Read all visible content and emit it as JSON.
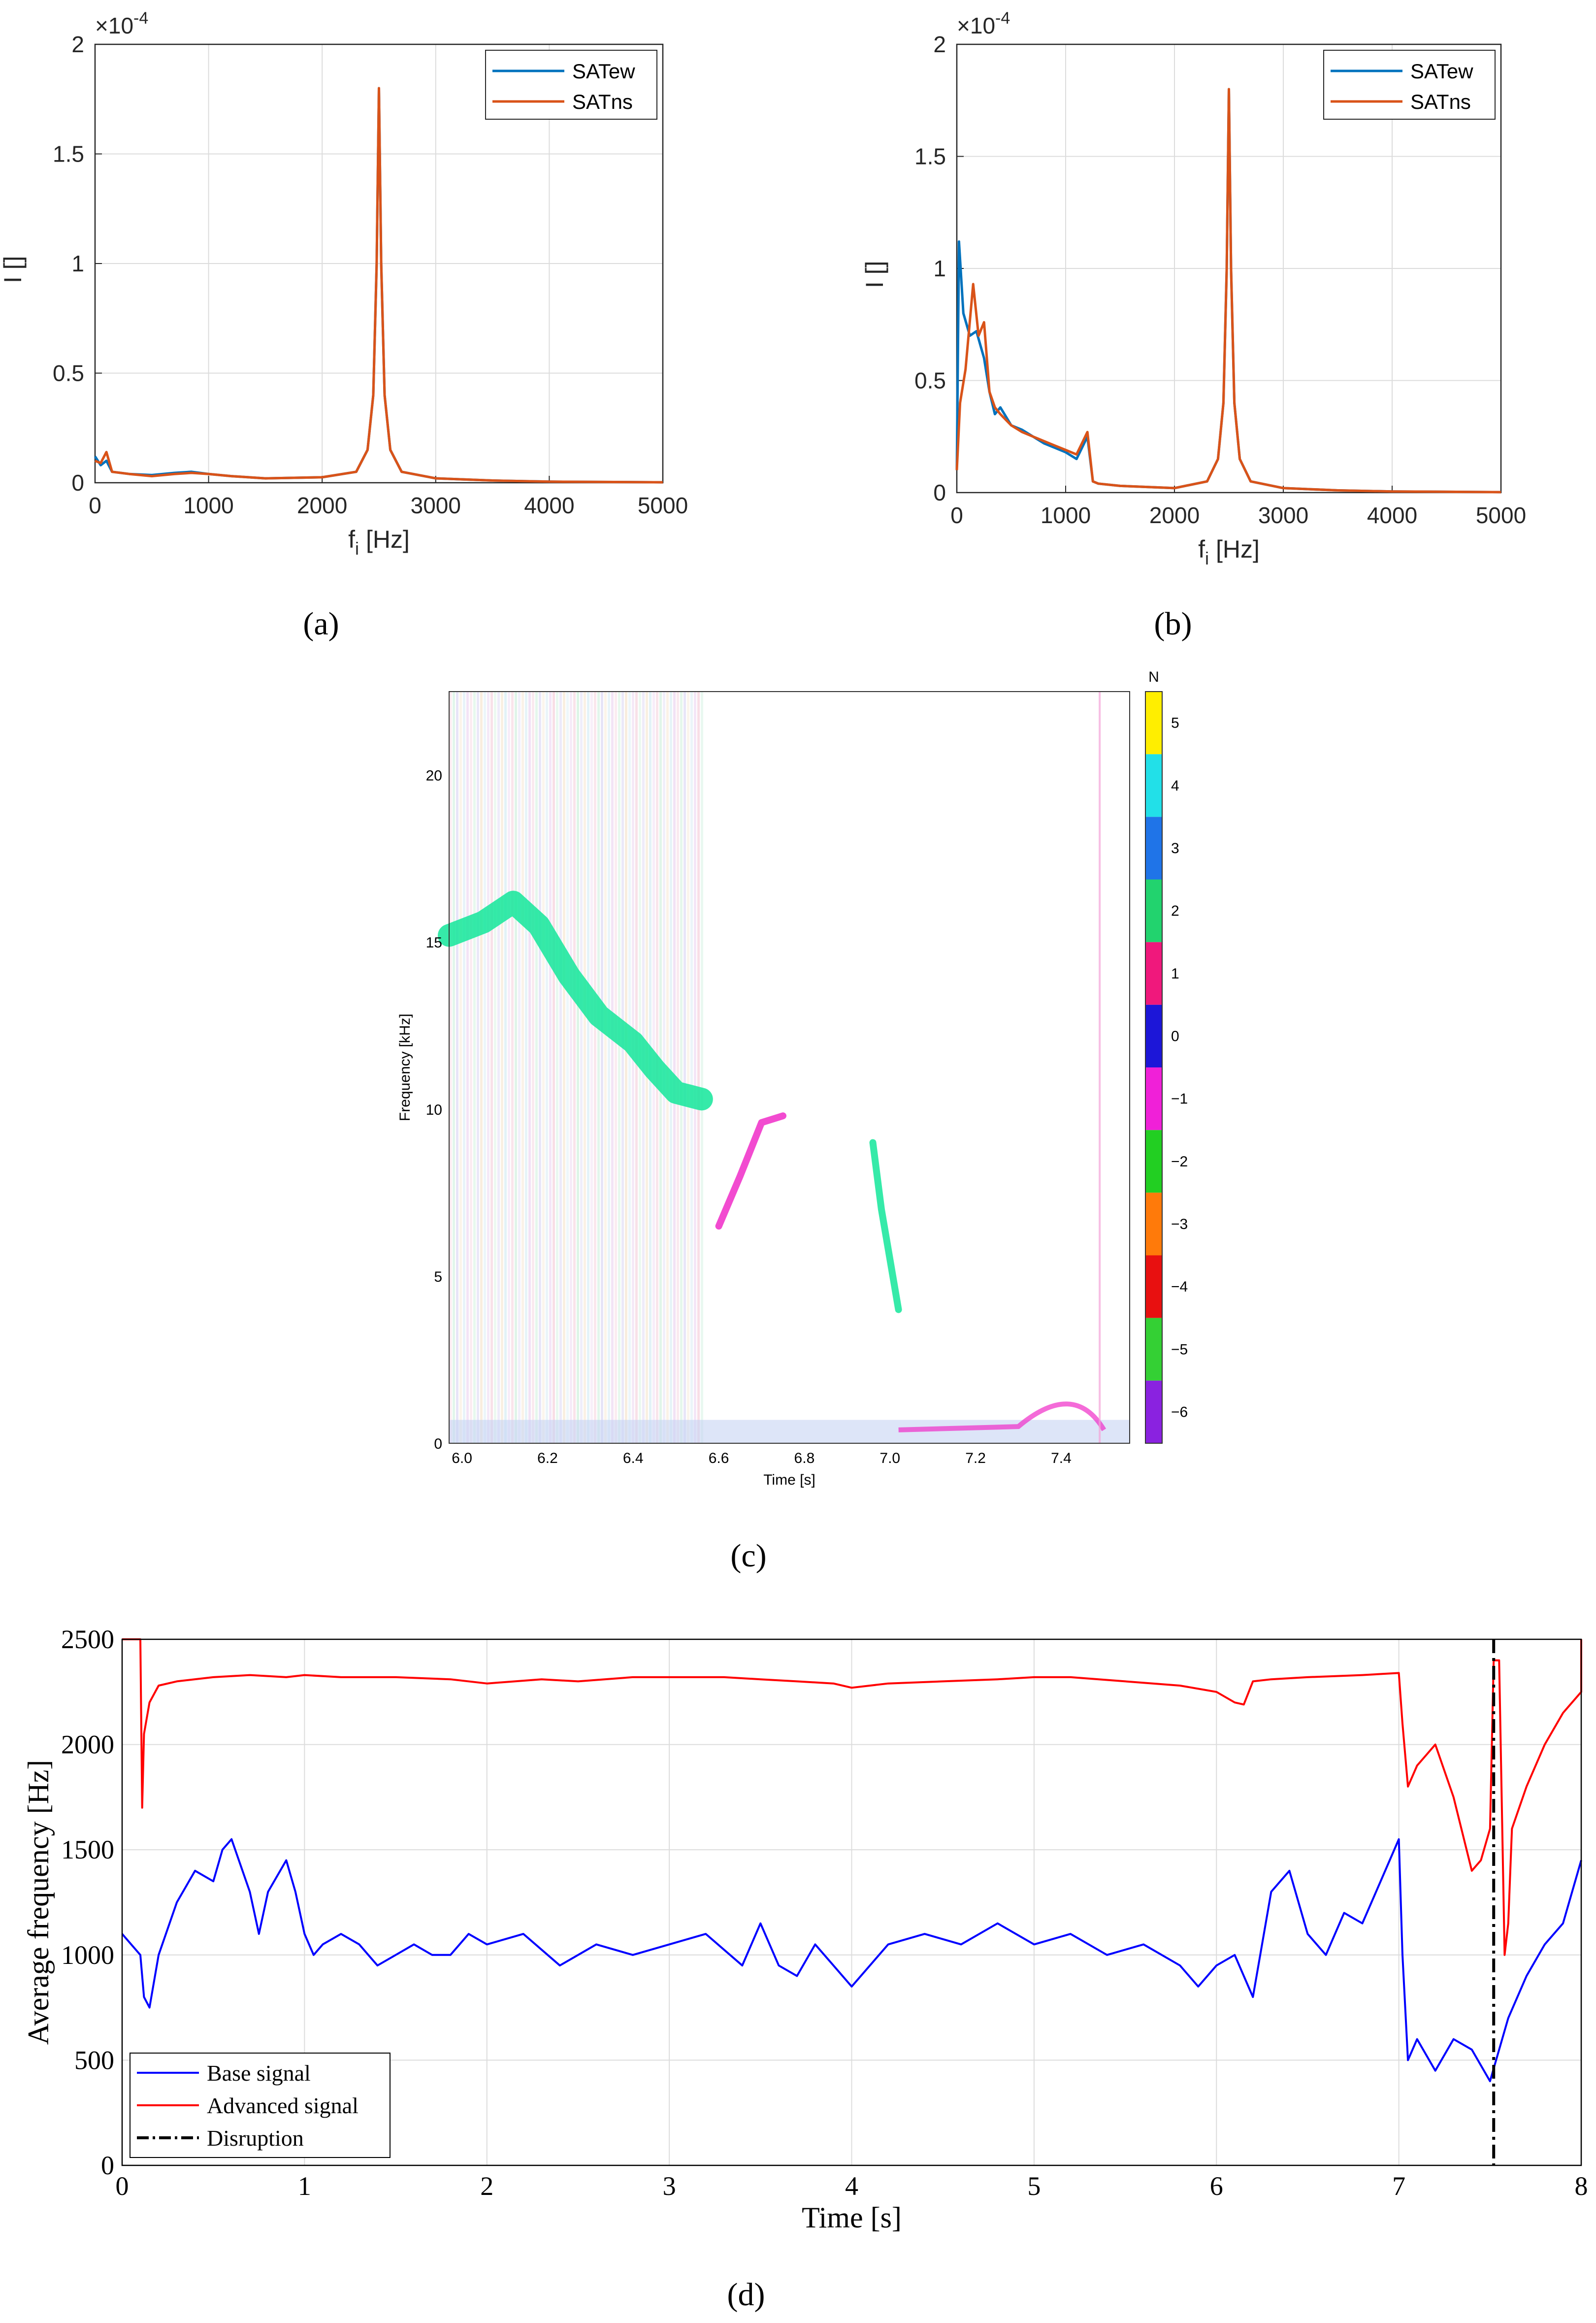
{
  "chart_data": [
    {
      "panel": "(a)",
      "type": "line",
      "exponent_label": "×10",
      "exponent_power": "-4",
      "xlabel": "f",
      "xlabel_sub": "i",
      "xlabel_unit": " [Hz]",
      "ylabel": "I []",
      "xlim": [
        0,
        5000
      ],
      "ylim": [
        0,
        2
      ],
      "xticks": [
        "0",
        "1000",
        "2000",
        "3000",
        "4000",
        "5000"
      ],
      "yticks": [
        "0",
        "0.5",
        "1",
        "1.5",
        "2"
      ],
      "legend": [
        "SATew",
        "SATns"
      ],
      "colors": [
        "#0072bd",
        "#d95319"
      ],
      "series": [
        {
          "name": "SATew",
          "x": [
            0,
            50,
            100,
            150,
            300,
            500,
            700,
            850,
            1000,
            1200,
            1500,
            2000,
            2300,
            2400,
            2450,
            2480,
            2500,
            2520,
            2550,
            2600,
            2700,
            3000,
            3500,
            4000,
            5000
          ],
          "y": [
            0.12,
            0.08,
            0.1,
            0.05,
            0.04,
            0.035,
            0.045,
            0.05,
            0.04,
            0.03,
            0.02,
            0.025,
            0.05,
            0.15,
            0.4,
            1.0,
            1.8,
            1.0,
            0.4,
            0.15,
            0.05,
            0.02,
            0.01,
            0.005,
            0.002
          ]
        },
        {
          "name": "SATns",
          "x": [
            0,
            50,
            100,
            150,
            300,
            500,
            700,
            850,
            1000,
            1200,
            1500,
            2000,
            2300,
            2400,
            2450,
            2480,
            2500,
            2520,
            2550,
            2600,
            2700,
            3000,
            3500,
            4000,
            5000
          ],
          "y": [
            0.1,
            0.09,
            0.14,
            0.05,
            0.04,
            0.03,
            0.04,
            0.045,
            0.04,
            0.03,
            0.02,
            0.025,
            0.05,
            0.15,
            0.4,
            1.0,
            1.8,
            1.0,
            0.4,
            0.15,
            0.05,
            0.02,
            0.01,
            0.005,
            0.002
          ]
        }
      ]
    },
    {
      "panel": "(b)",
      "type": "line",
      "exponent_label": "×10",
      "exponent_power": "-4",
      "xlabel": "f",
      "xlabel_sub": "i",
      "xlabel_unit": " [Hz]",
      "ylabel": "I []",
      "xlim": [
        0,
        5000
      ],
      "ylim": [
        0,
        2
      ],
      "xticks": [
        "0",
        "1000",
        "2000",
        "3000",
        "4000",
        "5000"
      ],
      "yticks": [
        "0",
        "0.5",
        "1",
        "1.5",
        "2"
      ],
      "legend": [
        "SATew",
        "SATns"
      ],
      "colors": [
        "#0072bd",
        "#d95319"
      ],
      "series": [
        {
          "name": "SATew",
          "x": [
            0,
            20,
            60,
            120,
            180,
            250,
            300,
            350,
            400,
            500,
            600,
            700,
            800,
            900,
            1000,
            1100,
            1150,
            1200,
            1250,
            1300,
            1500,
            2000,
            2300,
            2400,
            2450,
            2480,
            2500,
            2520,
            2550,
            2600,
            2700,
            3000,
            3500,
            4000,
            5000
          ],
          "y": [
            0.1,
            1.12,
            0.8,
            0.7,
            0.72,
            0.6,
            0.45,
            0.35,
            0.38,
            0.3,
            0.28,
            0.25,
            0.22,
            0.2,
            0.18,
            0.15,
            0.2,
            0.25,
            0.05,
            0.04,
            0.03,
            0.02,
            0.05,
            0.15,
            0.4,
            1.0,
            1.8,
            1.0,
            0.4,
            0.15,
            0.05,
            0.02,
            0.01,
            0.005,
            0.002
          ]
        },
        {
          "name": "SATns",
          "x": [
            0,
            30,
            80,
            150,
            200,
            250,
            300,
            350,
            400,
            500,
            600,
            700,
            800,
            900,
            1000,
            1100,
            1150,
            1200,
            1250,
            1300,
            1500,
            2000,
            2300,
            2400,
            2450,
            2480,
            2500,
            2520,
            2550,
            2600,
            2700,
            3000,
            3500,
            4000,
            5000
          ],
          "y": [
            0.1,
            0.4,
            0.55,
            0.93,
            0.7,
            0.76,
            0.45,
            0.38,
            0.35,
            0.3,
            0.27,
            0.25,
            0.23,
            0.21,
            0.19,
            0.17,
            0.22,
            0.27,
            0.05,
            0.04,
            0.03,
            0.02,
            0.05,
            0.15,
            0.4,
            1.0,
            1.8,
            1.0,
            0.4,
            0.15,
            0.05,
            0.02,
            0.01,
            0.005,
            0.002
          ]
        }
      ]
    },
    {
      "panel": "(c)",
      "type": "heatmap",
      "xlabel": "Time [s]",
      "ylabel": "Frequency [kHz]",
      "xlim": [
        5.97,
        7.56
      ],
      "ylim": [
        0,
        22.5
      ],
      "xticks": [
        "6.0",
        "6.2",
        "6.4",
        "6.6",
        "6.8",
        "7.0",
        "7.2",
        "7.4"
      ],
      "yticks": [
        "0",
        "5",
        "10",
        "15",
        "20"
      ],
      "colorbar_title": "N",
      "colorbar_ticks": [
        "5",
        "4",
        "3",
        "2",
        "1",
        "0",
        "−1",
        "−2",
        "−3",
        "−4",
        "−5",
        "−6"
      ],
      "colorbar_colors": [
        "#ffee00",
        "#22e0e8",
        "#1f74e8",
        "#22d36e",
        "#f0187c",
        "#1c16d8",
        "#f020d8",
        "#22cf22",
        "#ff7a0a",
        "#e81010",
        "#34d034",
        "#8a22e0"
      ],
      "traces": [
        {
          "name": "green-mode",
          "color": "#13e69a",
          "t": [
            5.97,
            6.05,
            6.12,
            6.18,
            6.25,
            6.32,
            6.4,
            6.45,
            6.5,
            6.56
          ],
          "f": [
            15.2,
            15.6,
            16.2,
            15.5,
            14.0,
            12.8,
            12.0,
            11.2,
            10.5,
            10.3
          ]
        },
        {
          "name": "magenta-mode",
          "color": "#f02cc8",
          "t": [
            6.6,
            6.65,
            6.7,
            6.75
          ],
          "f": [
            6.5,
            8.0,
            9.6,
            9.8
          ]
        },
        {
          "name": "green-late",
          "color": "#13e69a",
          "t": [
            6.96,
            6.98,
            7.0,
            7.02
          ],
          "f": [
            9.0,
            7.0,
            5.5,
            4.0
          ]
        }
      ]
    },
    {
      "panel": "(d)",
      "type": "line",
      "xlabel": "Time [s]",
      "ylabel": "Average frequency [Hz]",
      "xlim": [
        0,
        8
      ],
      "ylim": [
        0,
        2500
      ],
      "xticks": [
        "0",
        "1",
        "2",
        "3",
        "4",
        "5",
        "6",
        "7",
        "8"
      ],
      "yticks": [
        "0",
        "500",
        "1000",
        "1500",
        "2000",
        "2500"
      ],
      "legend": [
        "Base signal",
        "Advanced signal",
        "Disruption"
      ],
      "disruption_time": 7.52,
      "series": [
        {
          "name": "Base signal",
          "color": "#0000ff",
          "x": [
            0,
            0.1,
            0.12,
            0.15,
            0.2,
            0.3,
            0.4,
            0.5,
            0.55,
            0.6,
            0.7,
            0.75,
            0.8,
            0.9,
            0.95,
            1.0,
            1.05,
            1.1,
            1.2,
            1.3,
            1.4,
            1.5,
            1.6,
            1.7,
            1.8,
            1.9,
            2.0,
            2.2,
            2.4,
            2.6,
            2.8,
            3.0,
            3.2,
            3.4,
            3.5,
            3.6,
            3.7,
            3.8,
            3.9,
            4.0,
            4.2,
            4.4,
            4.6,
            4.8,
            5.0,
            5.2,
            5.4,
            5.6,
            5.8,
            5.9,
            6.0,
            6.1,
            6.2,
            6.3,
            6.4,
            6.5,
            6.6,
            6.7,
            6.8,
            6.9,
            7.0,
            7.02,
            7.05,
            7.1,
            7.2,
            7.3,
            7.4,
            7.5,
            7.55,
            7.6,
            7.7,
            7.8,
            7.9,
            8.0
          ],
          "y": [
            1100,
            1000,
            800,
            750,
            1000,
            1250,
            1400,
            1350,
            1500,
            1550,
            1300,
            1100,
            1300,
            1450,
            1300,
            1100,
            1000,
            1050,
            1100,
            1050,
            950,
            1000,
            1050,
            1000,
            1000,
            1100,
            1050,
            1100,
            950,
            1050,
            1000,
            1050,
            1100,
            950,
            1150,
            950,
            900,
            1050,
            950,
            850,
            1050,
            1100,
            1050,
            1150,
            1050,
            1100,
            1000,
            1050,
            950,
            850,
            950,
            1000,
            800,
            1300,
            1400,
            1100,
            1000,
            1200,
            1150,
            1350,
            1550,
            1000,
            500,
            600,
            450,
            600,
            550,
            400,
            550,
            700,
            900,
            1050,
            1150,
            1450
          ]
        },
        {
          "name": "Advanced signal",
          "color": "#ff0000",
          "x": [
            0,
            0.1,
            0.11,
            0.12,
            0.15,
            0.2,
            0.3,
            0.5,
            0.7,
            0.9,
            1.0,
            1.2,
            1.5,
            1.8,
            2.0,
            2.3,
            2.5,
            2.8,
            3.0,
            3.3,
            3.5,
            3.7,
            3.9,
            4.0,
            4.2,
            4.5,
            4.8,
            5.0,
            5.2,
            5.5,
            5.8,
            6.0,
            6.1,
            6.15,
            6.2,
            6.3,
            6.5,
            6.8,
            7.0,
            7.02,
            7.05,
            7.1,
            7.15,
            7.2,
            7.3,
            7.4,
            7.45,
            7.5,
            7.52,
            7.55,
            7.58,
            7.6,
            7.62,
            7.7,
            7.8,
            7.9,
            8.0,
            8.0
          ],
          "y": [
            2500,
            2500,
            1700,
            2050,
            2200,
            2280,
            2300,
            2320,
            2330,
            2320,
            2330,
            2320,
            2320,
            2310,
            2290,
            2310,
            2300,
            2320,
            2320,
            2320,
            2310,
            2300,
            2290,
            2270,
            2290,
            2300,
            2310,
            2320,
            2320,
            2300,
            2280,
            2250,
            2200,
            2190,
            2300,
            2310,
            2320,
            2330,
            2340,
            2100,
            1800,
            1900,
            1950,
            2000,
            1750,
            1400,
            1450,
            1600,
            2400,
            2400,
            1000,
            1150,
            1600,
            1800,
            2000,
            2150,
            2250,
            2500
          ]
        }
      ]
    }
  ],
  "panel_labels": {
    "a": "(a)",
    "b": "(b)",
    "c": "(c)",
    "d": "(d)"
  }
}
